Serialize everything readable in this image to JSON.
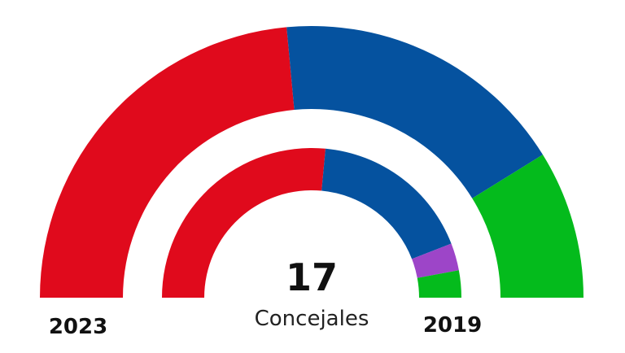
{
  "chart_data": {
    "type": "pie",
    "total": {
      "value": "17",
      "caption": "Concejales"
    },
    "rings": [
      {
        "label": "2023",
        "position": "outer",
        "seats": [
          {
            "color": "#e00a1c",
            "value": 8
          },
          {
            "color": "#05529f",
            "value": 6
          },
          {
            "color": "#04bb1c",
            "value": 3
          }
        ]
      },
      {
        "label": "2019",
        "position": "inner",
        "seats": [
          {
            "color": "#e00a1c",
            "value": 9
          },
          {
            "color": "#05529f",
            "value": 6
          },
          {
            "color": "#9d45c8",
            "value": 1
          },
          {
            "color": "#04bb1c",
            "value": 1
          }
        ]
      }
    ]
  }
}
